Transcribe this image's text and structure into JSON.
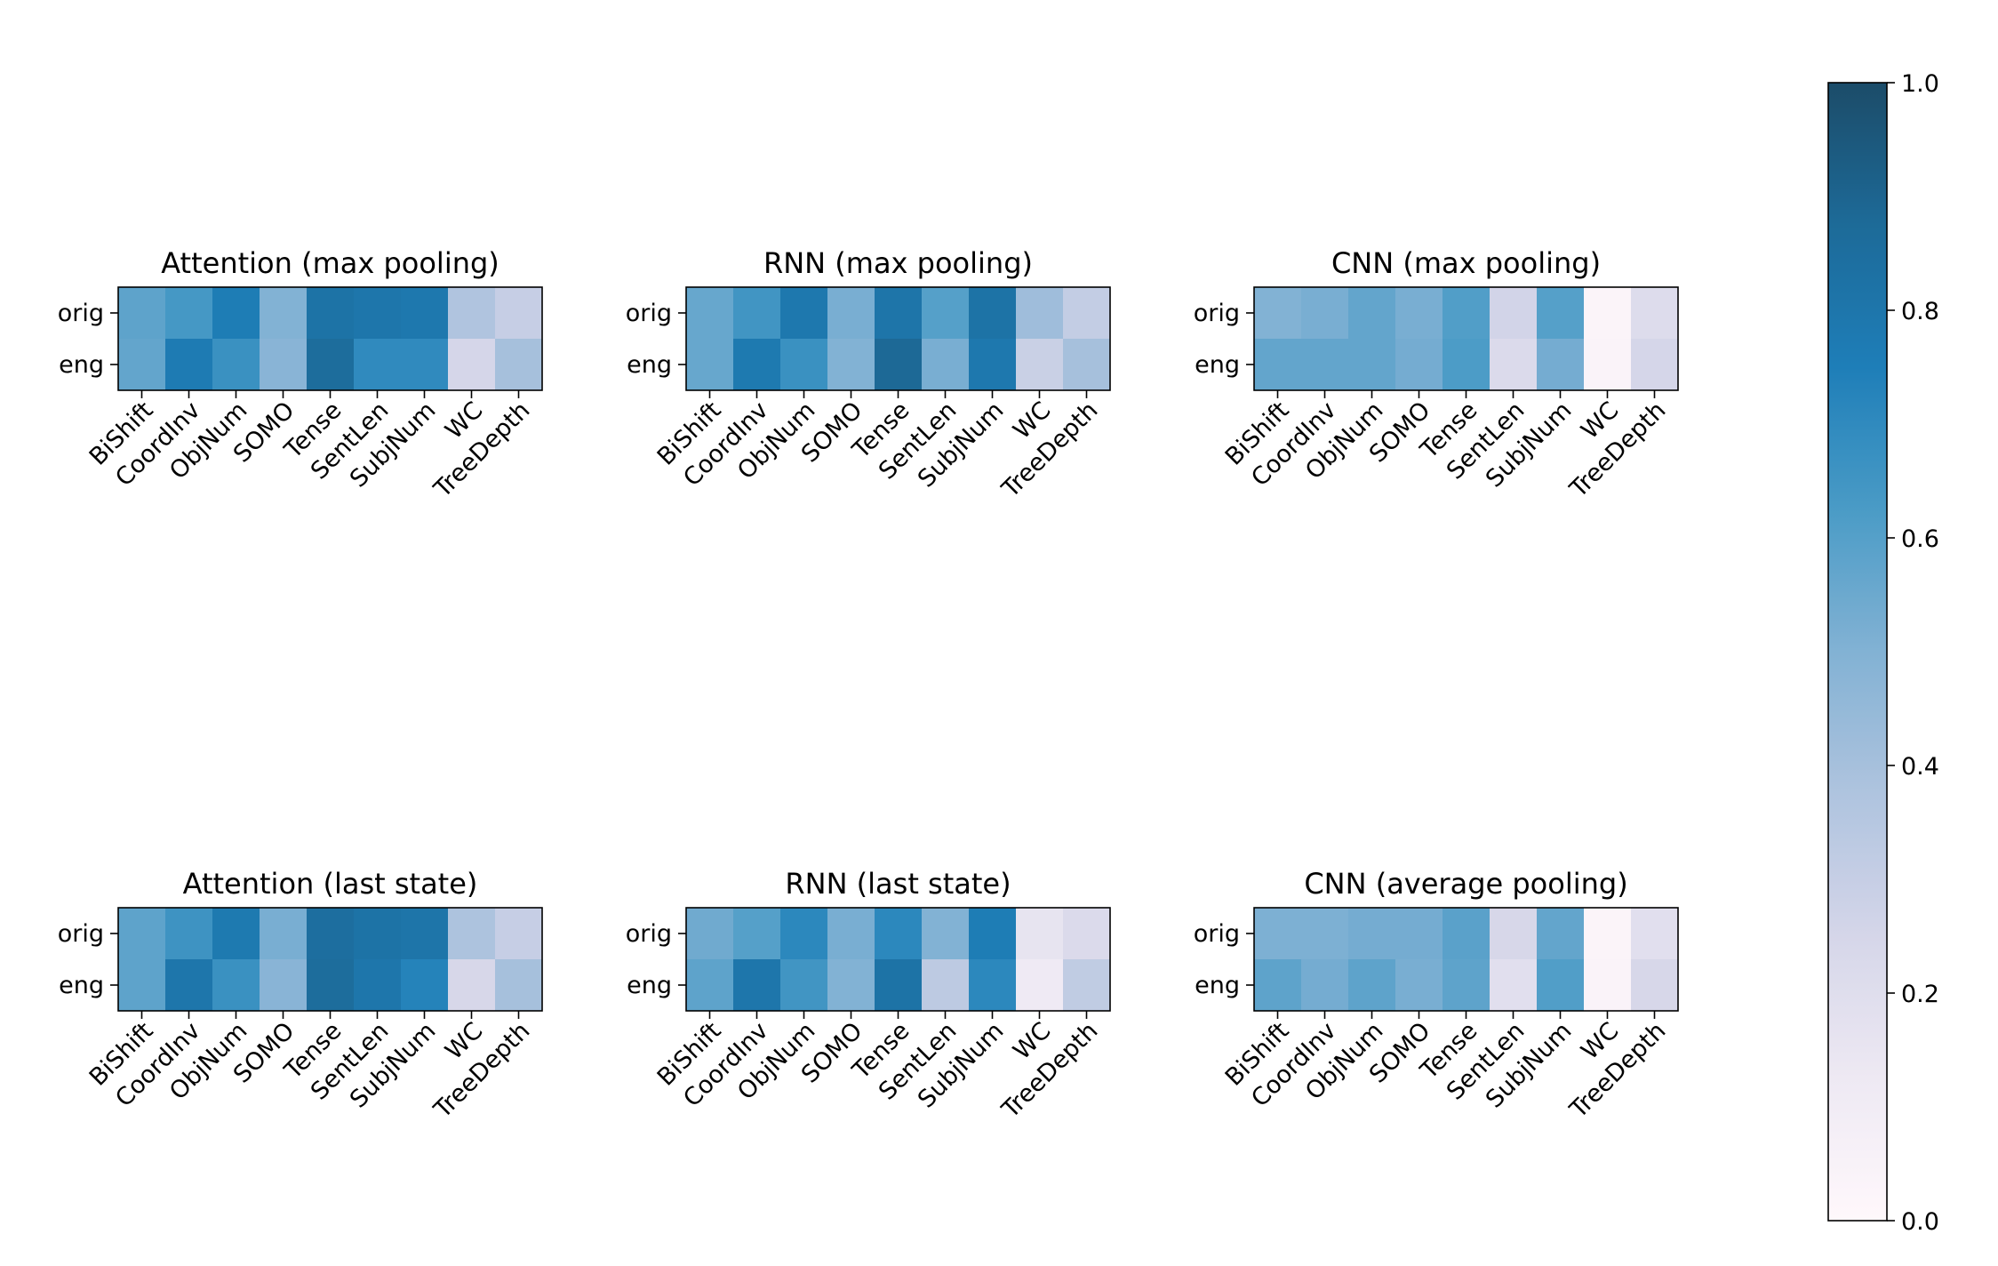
{
  "chart_data": [
    {
      "type": "heatmap",
      "title": "Attention (max pooling)",
      "rows": [
        "orig",
        "eng"
      ],
      "columns": [
        "BiShift",
        "CoordInv",
        "ObjNum",
        "SOMO",
        "Tense",
        "SentLen",
        "SubjNum",
        "WC",
        "TreeDepth"
      ],
      "values": [
        [
          0.58,
          0.64,
          0.76,
          0.5,
          0.82,
          0.8,
          0.79,
          0.37,
          0.3
        ],
        [
          0.57,
          0.77,
          0.67,
          0.48,
          0.86,
          0.7,
          0.7,
          0.25,
          0.4
        ]
      ]
    },
    {
      "type": "heatmap",
      "title": "RNN (max pooling)",
      "rows": [
        "orig",
        "eng"
      ],
      "columns": [
        "BiShift",
        "CoordInv",
        "ObjNum",
        "SOMO",
        "Tense",
        "SentLen",
        "SubjNum",
        "WC",
        "TreeDepth"
      ],
      "values": [
        [
          0.56,
          0.65,
          0.79,
          0.52,
          0.81,
          0.6,
          0.82,
          0.42,
          0.31
        ],
        [
          0.56,
          0.78,
          0.67,
          0.5,
          0.88,
          0.52,
          0.79,
          0.29,
          0.4
        ]
      ]
    },
    {
      "type": "heatmap",
      "title": "CNN (max pooling)",
      "rows": [
        "orig",
        "eng"
      ],
      "columns": [
        "BiShift",
        "CoordInv",
        "ObjNum",
        "SOMO",
        "Tense",
        "SentLen",
        "SubjNum",
        "WC",
        "TreeDepth"
      ],
      "values": [
        [
          0.5,
          0.52,
          0.57,
          0.52,
          0.61,
          0.26,
          0.6,
          0.03,
          0.21
        ],
        [
          0.57,
          0.57,
          0.57,
          0.53,
          0.62,
          0.22,
          0.53,
          0.04,
          0.25
        ]
      ]
    },
    {
      "type": "heatmap",
      "title": "Attention (last state)",
      "rows": [
        "orig",
        "eng"
      ],
      "columns": [
        "BiShift",
        "CoordInv",
        "ObjNum",
        "SOMO",
        "Tense",
        "SentLen",
        "SubjNum",
        "WC",
        "TreeDepth"
      ],
      "values": [
        [
          0.58,
          0.66,
          0.78,
          0.52,
          0.85,
          0.82,
          0.81,
          0.38,
          0.3
        ],
        [
          0.58,
          0.8,
          0.67,
          0.48,
          0.86,
          0.8,
          0.73,
          0.24,
          0.4
        ]
      ]
    },
    {
      "type": "heatmap",
      "title": "RNN (last state)",
      "rows": [
        "orig",
        "eng"
      ],
      "columns": [
        "BiShift",
        "CoordInv",
        "ObjNum",
        "SOMO",
        "Tense",
        "SentLen",
        "SubjNum",
        "WC",
        "TreeDepth"
      ],
      "values": [
        [
          0.54,
          0.6,
          0.71,
          0.52,
          0.71,
          0.5,
          0.76,
          0.16,
          0.22
        ],
        [
          0.58,
          0.8,
          0.65,
          0.5,
          0.82,
          0.33,
          0.71,
          0.12,
          0.32
        ]
      ]
    },
    {
      "type": "heatmap",
      "title": "CNN (average pooling)",
      "rows": [
        "orig",
        "eng"
      ],
      "columns": [
        "BiShift",
        "CoordInv",
        "ObjNum",
        "SOMO",
        "Tense",
        "SentLen",
        "SubjNum",
        "WC",
        "TreeDepth"
      ],
      "values": [
        [
          0.51,
          0.51,
          0.53,
          0.53,
          0.59,
          0.24,
          0.57,
          0.03,
          0.19
        ],
        [
          0.58,
          0.53,
          0.58,
          0.52,
          0.58,
          0.19,
          0.61,
          0.04,
          0.24
        ]
      ]
    }
  ],
  "colorbar": {
    "range": [
      0.0,
      1.0
    ],
    "ticks": [
      0.0,
      0.2,
      0.4,
      0.6,
      0.8,
      1.0
    ],
    "tick_labels": [
      "0.0",
      "0.2",
      "0.4",
      "0.6",
      "0.8",
      "1.0"
    ],
    "colors": [
      "#fff7fb",
      "#ece7f2",
      "#d0d1e6",
      "#a6bddb",
      "#74a9cf",
      "#3690c0",
      "#0570b0",
      "#045a8d",
      "#023858"
    ],
    "alpha": 0.9
  }
}
